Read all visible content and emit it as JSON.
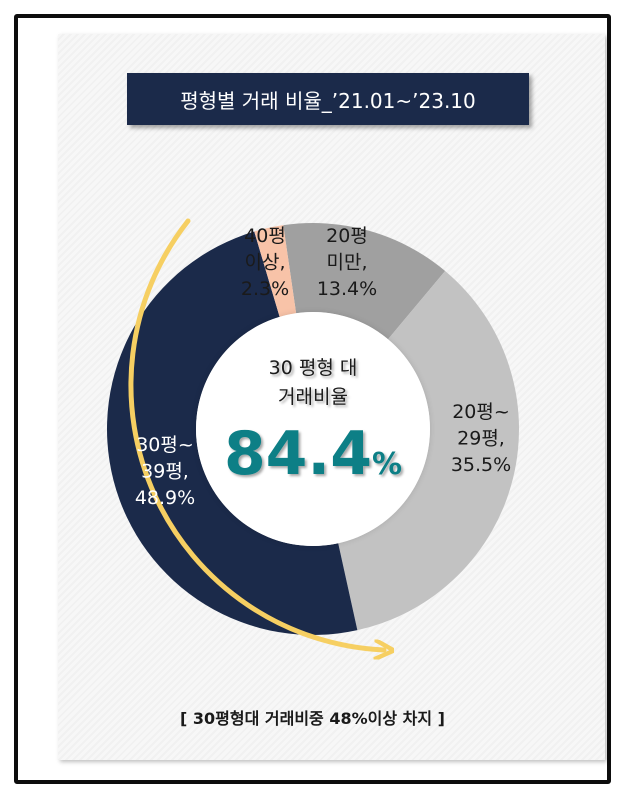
{
  "title": "평형별 거래 비율_’21.01~’23.10",
  "center": {
    "line1": "30 평형 대",
    "line2": "거래비율",
    "value": "84.4",
    "unit": "%"
  },
  "footer": "[ 30평형대 거래비중 48%이상 차지 ]",
  "colors": {
    "accent": "#1b2a4a",
    "highlight": "#0f7f86",
    "arrow": "#f6cf62"
  },
  "chart_data": {
    "type": "pie",
    "donut": true,
    "start_angle_deg": -8.3,
    "categories": [
      "20평 미만",
      "20평~29평",
      "30평~39평",
      "40평이상"
    ],
    "values": [
      13.4,
      35.5,
      48.9,
      2.3
    ],
    "slice_colors": [
      "#a0a0a0",
      "#c2c2c2",
      "#1b2a4a",
      "#f8c3a8"
    ],
    "labels": [
      {
        "lines": [
          "20평",
          "미만,",
          "13.4%"
        ],
        "color": "#1a1a1a"
      },
      {
        "lines": [
          "20평~",
          "29평,",
          "35.5%"
        ],
        "color": "#1a1a1a"
      },
      {
        "lines": [
          "30평~",
          "39평,",
          "48.9%"
        ],
        "color": "#ffffff"
      },
      {
        "lines": [
          "40평",
          "이상,",
          "2.3%"
        ],
        "color": "#1a1a1a"
      }
    ]
  }
}
